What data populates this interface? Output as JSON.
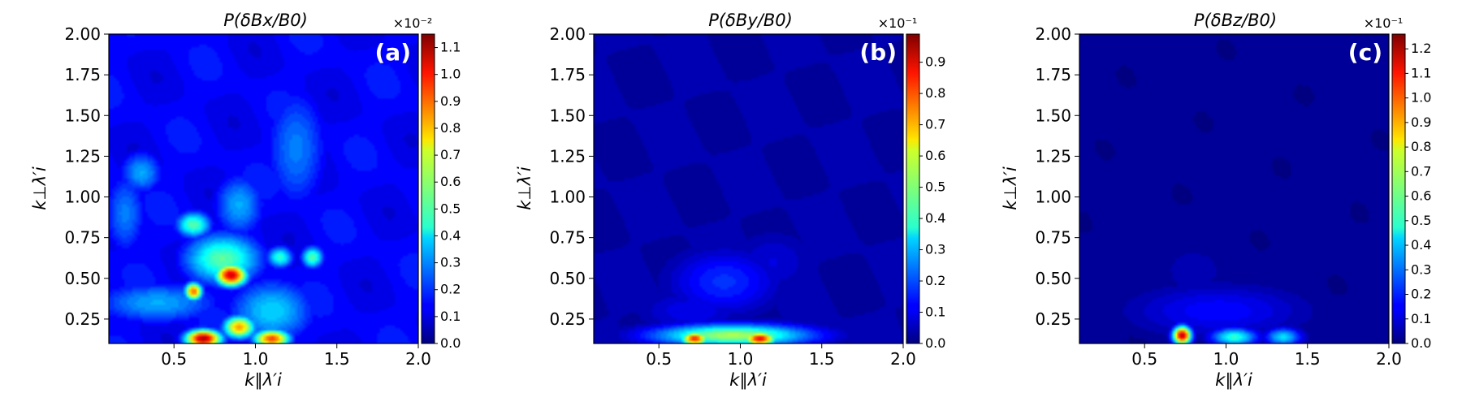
{
  "chart_data": [
    {
      "type": "heatmap",
      "title": "P(δBx/B0)",
      "xlabel": "k∥λ′i",
      "ylabel": "k⊥λ′i",
      "panel_label": "(a)",
      "xlim": [
        0.1,
        2.0
      ],
      "ylim": [
        0.1,
        2.0
      ],
      "xticks": [
        0.5,
        1.0,
        1.5,
        2.0
      ],
      "xtick_labels": [
        "0.5",
        "1.0",
        "1.5",
        "2.0"
      ],
      "yticks": [
        0.25,
        0.5,
        0.75,
        1.0,
        1.25,
        1.5,
        1.75,
        2.0
      ],
      "ytick_labels": [
        "0.25",
        "0.50",
        "0.75",
        "1.00",
        "1.25",
        "1.50",
        "1.75",
        "2.00"
      ],
      "colorbar": {
        "multiplier": "×10⁻²",
        "min": 0.0,
        "max": 1.15,
        "ticks": [
          0.0,
          0.1,
          0.2,
          0.3,
          0.4,
          0.5,
          0.6,
          0.7,
          0.8,
          0.9,
          1.0,
          1.1
        ],
        "tick_labels": [
          "0.0",
          "0.1",
          "0.2",
          "0.3",
          "0.4",
          "0.5",
          "0.6",
          "0.7",
          "0.8",
          "0.9",
          "1.0",
          "1.1"
        ]
      },
      "background": 0.15,
      "hotspots": [
        {
          "x": 0.68,
          "y": 0.13,
          "value": 1.12,
          "sx": 0.08,
          "sy": 0.04
        },
        {
          "x": 0.9,
          "y": 0.2,
          "value": 0.85,
          "sx": 0.07,
          "sy": 0.05
        },
        {
          "x": 1.1,
          "y": 0.13,
          "value": 0.95,
          "sx": 0.08,
          "sy": 0.04
        },
        {
          "x": 0.85,
          "y": 0.52,
          "value": 1.08,
          "sx": 0.07,
          "sy": 0.05
        },
        {
          "x": 0.62,
          "y": 0.42,
          "value": 0.9,
          "sx": 0.04,
          "sy": 0.04
        },
        {
          "x": 0.8,
          "y": 0.62,
          "value": 0.55,
          "sx": 0.18,
          "sy": 0.12
        },
        {
          "x": 0.62,
          "y": 0.83,
          "value": 0.55,
          "sx": 0.08,
          "sy": 0.06
        },
        {
          "x": 1.15,
          "y": 0.63,
          "value": 0.5,
          "sx": 0.06,
          "sy": 0.05
        },
        {
          "x": 1.35,
          "y": 0.63,
          "value": 0.55,
          "sx": 0.05,
          "sy": 0.05
        },
        {
          "x": 0.4,
          "y": 0.35,
          "value": 0.35,
          "sx": 0.3,
          "sy": 0.1
        },
        {
          "x": 1.1,
          "y": 0.3,
          "value": 0.4,
          "sx": 0.2,
          "sy": 0.15
        },
        {
          "x": 0.3,
          "y": 1.15,
          "value": 0.35,
          "sx": 0.1,
          "sy": 0.1
        },
        {
          "x": 0.9,
          "y": 0.95,
          "value": 0.35,
          "sx": 0.12,
          "sy": 0.15
        },
        {
          "x": 1.25,
          "y": 1.3,
          "value": 0.3,
          "sx": 0.15,
          "sy": 0.3
        },
        {
          "x": 0.2,
          "y": 0.9,
          "value": 0.3,
          "sx": 0.1,
          "sy": 0.2
        }
      ]
    },
    {
      "type": "heatmap",
      "title": "P(δBy/B0)",
      "xlabel": "k∥λ′i",
      "ylabel": "k⊥λ′i",
      "panel_label": "(b)",
      "xlim": [
        0.1,
        2.0
      ],
      "ylim": [
        0.1,
        2.0
      ],
      "xticks": [
        0.5,
        1.0,
        1.5,
        2.0
      ],
      "xtick_labels": [
        "0.5",
        "1.0",
        "1.5",
        "2.0"
      ],
      "yticks": [
        0.25,
        0.5,
        0.75,
        1.0,
        1.25,
        1.5,
        1.75,
        2.0
      ],
      "ytick_labels": [
        "0.25",
        "0.50",
        "0.75",
        "1.00",
        "1.25",
        "1.50",
        "1.75",
        "2.00"
      ],
      "colorbar": {
        "multiplier": "×10⁻¹",
        "min": 0.0,
        "max": 0.99,
        "ticks": [
          0.0,
          0.1,
          0.2,
          0.3,
          0.4,
          0.5,
          0.6,
          0.7,
          0.8,
          0.9
        ],
        "tick_labels": [
          "0.0",
          "0.1",
          "0.2",
          "0.3",
          "0.4",
          "0.5",
          "0.6",
          "0.7",
          "0.8",
          "0.9"
        ]
      },
      "background": 0.05,
      "hotspots": [
        {
          "x": 0.72,
          "y": 0.13,
          "value": 0.85,
          "sx": 0.06,
          "sy": 0.03
        },
        {
          "x": 1.12,
          "y": 0.13,
          "value": 0.9,
          "sx": 0.07,
          "sy": 0.03
        },
        {
          "x": 0.95,
          "y": 0.15,
          "value": 0.55,
          "sx": 0.35,
          "sy": 0.05
        },
        {
          "x": 0.9,
          "y": 0.48,
          "value": 0.18,
          "sx": 0.25,
          "sy": 0.15
        },
        {
          "x": 0.7,
          "y": 0.3,
          "value": 0.12,
          "sx": 0.25,
          "sy": 0.1
        },
        {
          "x": 1.2,
          "y": 0.6,
          "value": 0.1,
          "sx": 0.2,
          "sy": 0.15
        }
      ]
    },
    {
      "type": "heatmap",
      "title": "P(δBz/B0)",
      "xlabel": "k∥λ′i",
      "ylabel": "k⊥λ′i",
      "panel_label": "(c)",
      "xlim": [
        0.1,
        2.0
      ],
      "ylim": [
        0.1,
        2.0
      ],
      "xticks": [
        0.5,
        1.0,
        1.5,
        2.0
      ],
      "xtick_labels": [
        "0.5",
        "1.0",
        "1.5",
        "2.0"
      ],
      "yticks": [
        0.25,
        0.5,
        0.75,
        1.0,
        1.25,
        1.5,
        1.75,
        2.0
      ],
      "ytick_labels": [
        "0.25",
        "0.50",
        "0.75",
        "1.00",
        "1.25",
        "1.50",
        "1.75",
        "2.00"
      ],
      "colorbar": {
        "multiplier": "×10⁻¹",
        "min": 0.0,
        "max": 1.26,
        "ticks": [
          0.0,
          0.1,
          0.2,
          0.3,
          0.4,
          0.5,
          0.6,
          0.7,
          0.8,
          0.9,
          1.0,
          1.1,
          1.2
        ],
        "tick_labels": [
          "0.0",
          "0.1",
          "0.2",
          "0.3",
          "0.4",
          "0.5",
          "0.6",
          "0.7",
          "0.8",
          "0.9",
          "1.0",
          "1.1",
          "1.2"
        ]
      },
      "background": 0.04,
      "hotspots": [
        {
          "x": 0.73,
          "y": 0.15,
          "value": 1.2,
          "sx": 0.04,
          "sy": 0.04
        },
        {
          "x": 1.05,
          "y": 0.14,
          "value": 0.55,
          "sx": 0.1,
          "sy": 0.04
        },
        {
          "x": 1.35,
          "y": 0.14,
          "value": 0.45,
          "sx": 0.08,
          "sy": 0.04
        },
        {
          "x": 0.95,
          "y": 0.3,
          "value": 0.18,
          "sx": 0.4,
          "sy": 0.12
        },
        {
          "x": 0.8,
          "y": 0.55,
          "value": 0.08,
          "sx": 0.2,
          "sy": 0.15
        }
      ]
    }
  ]
}
